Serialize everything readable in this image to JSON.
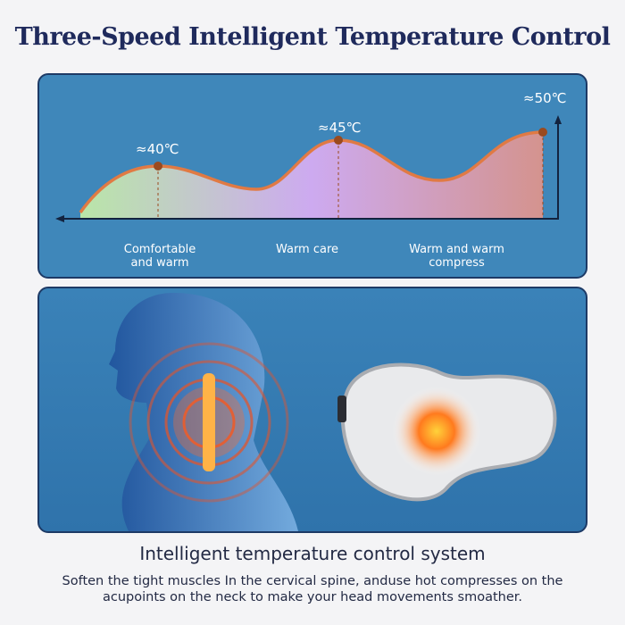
{
  "title": "Three-Speed Intelligent Temperature Control",
  "chart": {
    "levels": [
      {
        "temp": "≈40℃",
        "label_line1": "Comfortable",
        "label_line2": "and warm"
      },
      {
        "temp": "≈45℃",
        "label_line1": "Warm care",
        "label_line2": ""
      },
      {
        "temp": "≈50℃",
        "label_line1": "Warm and warm",
        "label_line2": "compress"
      }
    ],
    "colors": {
      "curve": "#e07a44",
      "marker": "#9a4a1e",
      "fill_start": "#b9e6a8",
      "fill_mid": "#cdaaf0",
      "fill_end": "#d4938e"
    }
  },
  "bottom": {
    "subtitle": "Intelligent temperature control system",
    "description_line1": "Soften the tight muscles In the cervical spine, anduse hot compresses on the",
    "description_line2": "acupoints on the neck to make your head movements smoather."
  }
}
